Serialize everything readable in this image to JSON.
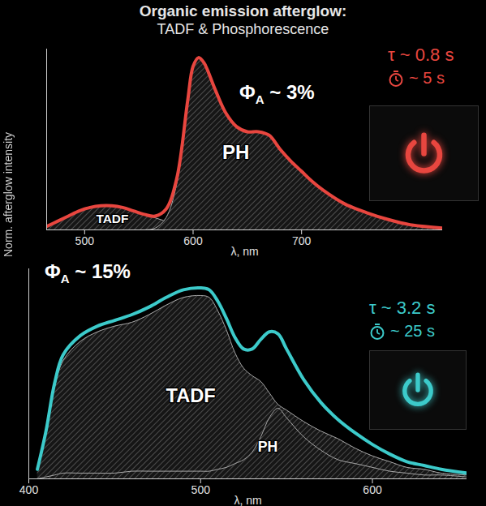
{
  "title": "Organic emission afterglow:",
  "subtitle": "TADF & Phosphorescence",
  "y_label": "Norm. afterglow intensity",
  "chart_data": [
    {
      "type": "line",
      "x_label": "λ, nm",
      "xlim": [
        465,
        830
      ],
      "xticks": [
        500,
        600,
        700
      ],
      "ylim": [
        0,
        1.05
      ],
      "tick_labels": "x",
      "x": [
        465,
        475,
        485,
        495,
        505,
        515,
        525,
        535,
        545,
        555,
        565,
        575,
        585,
        595,
        600,
        605,
        610,
        620,
        630,
        640,
        650,
        660,
        670,
        680,
        690,
        700,
        710,
        720,
        740,
        760,
        780,
        800,
        830
      ],
      "series": [
        {
          "color": "#e8463f",
          "values": [
            0.02,
            0.05,
            0.08,
            0.11,
            0.13,
            0.14,
            0.14,
            0.13,
            0.11,
            0.09,
            0.08,
            0.12,
            0.3,
            0.75,
            0.95,
            1.0,
            0.97,
            0.82,
            0.68,
            0.6,
            0.57,
            0.57,
            0.55,
            0.47,
            0.4,
            0.34,
            0.28,
            0.23,
            0.15,
            0.1,
            0.06,
            0.03,
            0.01
          ]
        },
        {
          "name": "TADF",
          "type": "area",
          "color": "#a8a8a8",
          "values": [
            0.02,
            0.05,
            0.08,
            0.11,
            0.13,
            0.14,
            0.14,
            0.13,
            0.11,
            0.09,
            0.07,
            0.05,
            0.03,
            0.01,
            0.01,
            0,
            0,
            0,
            0,
            0,
            0,
            0,
            0,
            0,
            0,
            0,
            0,
            0,
            0,
            0,
            0,
            0,
            0
          ]
        },
        {
          "name": "PH",
          "type": "area",
          "color": "#a8a8a8",
          "values": [
            0,
            0,
            0,
            0,
            0,
            0,
            0,
            0,
            0,
            0,
            0.01,
            0.07,
            0.27,
            0.74,
            0.94,
            1.0,
            0.97,
            0.82,
            0.68,
            0.6,
            0.57,
            0.57,
            0.55,
            0.47,
            0.4,
            0.34,
            0.28,
            0.23,
            0.15,
            0.1,
            0.06,
            0.03,
            0.01
          ]
        }
      ],
      "quantum_yield": {
        "symbol": "Φ",
        "subscript": "A",
        "text": " ~ 3%"
      },
      "lifetime": "τ ~ 0.8 s",
      "afterglow_duration": "~ 5 s"
    },
    {
      "type": "line",
      "x_label": "λ, nm",
      "xlim": [
        400,
        655
      ],
      "xticks": [
        400,
        500,
        600
      ],
      "ylim": [
        0,
        1.1
      ],
      "tick_labels": "x",
      "x": [
        405,
        410,
        415,
        420,
        430,
        440,
        450,
        460,
        470,
        480,
        490,
        500,
        505,
        510,
        515,
        520,
        525,
        530,
        535,
        540,
        545,
        550,
        560,
        570,
        580,
        590,
        600,
        610,
        620,
        630,
        640,
        655
      ],
      "series": [
        {
          "color": "#3ccaca",
          "values": [
            0.05,
            0.25,
            0.5,
            0.65,
            0.75,
            0.8,
            0.83,
            0.86,
            0.9,
            0.95,
            0.99,
            1.0,
            0.99,
            0.93,
            0.84,
            0.74,
            0.68,
            0.68,
            0.73,
            0.77,
            0.76,
            0.68,
            0.52,
            0.4,
            0.31,
            0.24,
            0.18,
            0.13,
            0.09,
            0.07,
            0.05,
            0.03
          ]
        },
        {
          "name": "TADF",
          "type": "area",
          "color": "#a8a8a8",
          "values": [
            0.05,
            0.24,
            0.48,
            0.62,
            0.72,
            0.77,
            0.8,
            0.82,
            0.86,
            0.91,
            0.95,
            0.96,
            0.95,
            0.88,
            0.78,
            0.66,
            0.58,
            0.54,
            0.51,
            0.45,
            0.39,
            0.36,
            0.3,
            0.25,
            0.21,
            0.16,
            0.12,
            0.09,
            0.06,
            0.05,
            0.03,
            0.02
          ]
        },
        {
          "name": "PH",
          "type": "area",
          "color": "#a8a8a8",
          "values": [
            0,
            0.01,
            0.02,
            0.03,
            0.03,
            0.03,
            0.03,
            0.04,
            0.04,
            0.04,
            0.04,
            0.04,
            0.04,
            0.05,
            0.06,
            0.08,
            0.1,
            0.14,
            0.22,
            0.32,
            0.37,
            0.32,
            0.22,
            0.15,
            0.1,
            0.08,
            0.06,
            0.04,
            0.03,
            0.02,
            0.02,
            0.01
          ]
        }
      ],
      "quantum_yield": {
        "symbol": "Φ",
        "subscript": "A",
        "text": " ~ 15%"
      },
      "lifetime": "τ ~ 3.2 s",
      "afterglow_duration": "~ 25 s"
    }
  ]
}
